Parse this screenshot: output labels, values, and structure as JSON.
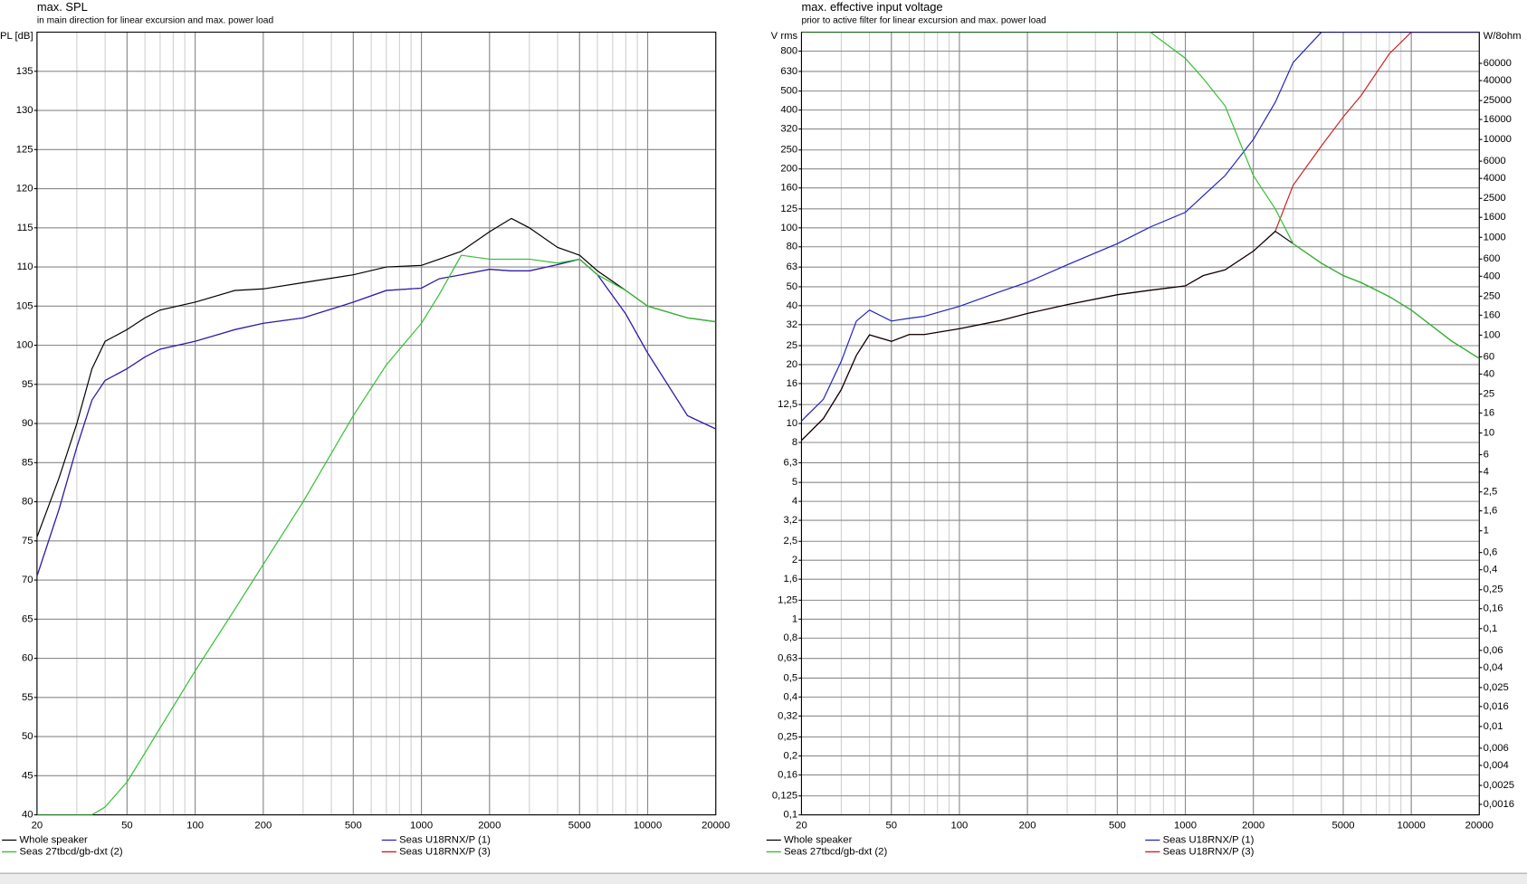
{
  "chart_data": [
    {
      "type": "line",
      "title": "max. SPL",
      "subtitle": "in main direction for linear excursion and max. power load",
      "ylabel": "SPL [dB]",
      "log_x": true,
      "log_y": false,
      "grid": true,
      "legend": "bottom",
      "x": [
        20,
        25,
        30,
        35,
        40,
        50,
        60,
        70,
        100,
        150,
        200,
        300,
        500,
        700,
        1000,
        1200,
        1500,
        2000,
        2500,
        3000,
        4000,
        5000,
        6000,
        8000,
        10000,
        15000,
        20000
      ],
      "xlim": [
        20,
        20000
      ],
      "xticks": [
        20,
        50,
        100,
        200,
        500,
        1000,
        2000,
        5000,
        10000,
        20000
      ],
      "ylim": [
        40,
        140
      ],
      "yticks": [
        40,
        45,
        50,
        55,
        60,
        65,
        70,
        75,
        80,
        85,
        90,
        95,
        100,
        105,
        110,
        115,
        120,
        125,
        130,
        135
      ],
      "series": [
        {
          "name": "Seas U18RNX/P (3)",
          "color": "#d02020",
          "values": [
            70.5,
            79,
            87,
            93,
            95.5,
            97,
            98.5,
            99.5,
            100.5,
            102,
            102.8,
            103.5,
            105.5,
            107,
            107.3,
            108.5,
            109,
            109.7,
            109.5,
            109.5,
            110.3,
            111,
            109,
            104,
            99,
            91,
            89.3
          ]
        },
        {
          "name": "Whole speaker",
          "color": "#000000",
          "values": [
            75.5,
            83,
            90,
            97,
            100.5,
            102,
            103.5,
            104.5,
            105.5,
            107,
            107.2,
            108,
            109,
            110,
            110.2,
            111,
            112,
            114.5,
            116.2,
            115,
            112.5,
            111.5,
            109.5,
            107,
            105,
            103.5,
            103
          ]
        },
        {
          "name": "Seas U18RNX/P (1)",
          "color": "#2020c0",
          "values": [
            70.5,
            79,
            87,
            93,
            95.5,
            97,
            98.5,
            99.5,
            100.5,
            102,
            102.8,
            103.5,
            105.5,
            107,
            107.3,
            108.5,
            109,
            109.7,
            109.5,
            109.5,
            110.3,
            111,
            109,
            104,
            99,
            91,
            89.3
          ]
        },
        {
          "name": "Seas 27tbcd/gb-dxt (2)",
          "color": "#30c030",
          "values": [
            40,
            40,
            40,
            40,
            41,
            44.2,
            47.9,
            51.1,
            58.4,
            66.3,
            72,
            80,
            91,
            97.5,
            102.8,
            106.5,
            111.5,
            111,
            111,
            111,
            110.5,
            111,
            109,
            107,
            105,
            103.5,
            103
          ]
        }
      ]
    },
    {
      "type": "line",
      "title": "max. effective input voltage",
      "subtitle": "prior to active filter for linear excursion and max. power load",
      "ylabel": "V rms",
      "y2label": "W/8ohm",
      "log_x": true,
      "log_y": true,
      "log_y2": true,
      "grid": true,
      "legend": "bottom",
      "x": [
        20,
        25,
        30,
        35,
        40,
        50,
        60,
        70,
        100,
        150,
        200,
        300,
        500,
        700,
        1000,
        1200,
        1500,
        2000,
        2500,
        3000,
        4000,
        5000,
        6000,
        8000,
        10000,
        15000,
        20000
      ],
      "xlim": [
        20,
        20000
      ],
      "xticks": [
        20,
        50,
        100,
        200,
        500,
        1000,
        2000,
        5000,
        10000,
        20000
      ],
      "ylim": [
        0.1,
        1000
      ],
      "yticks": [
        {
          "value": 0.1,
          "label": "0,1"
        },
        {
          "value": 0.125,
          "label": "0,125"
        },
        {
          "value": 0.16,
          "label": "0,16"
        },
        {
          "value": 0.2,
          "label": "0,2"
        },
        {
          "value": 0.25,
          "label": "0,25"
        },
        {
          "value": 0.32,
          "label": "0,32"
        },
        {
          "value": 0.4,
          "label": "0,4"
        },
        {
          "value": 0.5,
          "label": "0,5"
        },
        {
          "value": 0.63,
          "label": "0,63"
        },
        {
          "value": 0.8,
          "label": "0,8"
        },
        1,
        {
          "value": 1.25,
          "label": "1,25"
        },
        {
          "value": 1.6,
          "label": "1,6"
        },
        2,
        {
          "value": 2.5,
          "label": "2,5"
        },
        {
          "value": 3.2,
          "label": "3,2"
        },
        4,
        5,
        {
          "value": 6.3,
          "label": "6,3"
        },
        8,
        10,
        {
          "value": 12.5,
          "label": "12,5"
        },
        16,
        20,
        25,
        32,
        40,
        50,
        63,
        80,
        100,
        125,
        160,
        200,
        250,
        320,
        400,
        500,
        630,
        800
      ],
      "y2lim": [
        0.00125,
        125000
      ],
      "y2ticks": [
        {
          "value": 0.0016,
          "label": "0,0016"
        },
        {
          "value": 0.0025,
          "label": "0,0025"
        },
        {
          "value": 0.004,
          "label": "0,004"
        },
        {
          "value": 0.006,
          "label": "0,006"
        },
        {
          "value": 0.01,
          "label": "0,01"
        },
        {
          "value": 0.016,
          "label": "0,016"
        },
        {
          "value": 0.025,
          "label": "0,025"
        },
        {
          "value": 0.04,
          "label": "0,04"
        },
        {
          "value": 0.06,
          "label": "0,06"
        },
        {
          "value": 0.1,
          "label": "0,1"
        },
        {
          "value": 0.16,
          "label": "0,16"
        },
        {
          "value": 0.25,
          "label": "0,25"
        },
        {
          "value": 0.4,
          "label": "0,4"
        },
        {
          "value": 0.6,
          "label": "0,6"
        },
        1,
        {
          "value": 1.6,
          "label": "1,6"
        },
        {
          "value": 2.5,
          "label": "2,5"
        },
        4,
        6,
        10,
        16,
        25,
        40,
        60,
        100,
        160,
        250,
        400,
        600,
        1000,
        1600,
        2500,
        4000,
        6000,
        10000,
        16000,
        25000,
        40000,
        60000
      ],
      "series": [
        {
          "name": "Seas U18RNX/P (3)",
          "color": "#d02020",
          "values": [
            8.2,
            10.6,
            14.9,
            22.3,
            28.4,
            26.3,
            28.5,
            28.5,
            30.5,
            33.5,
            36.5,
            40.5,
            45.5,
            48,
            50.5,
            57,
            61,
            76,
            96,
            165,
            262,
            369,
            475,
            776,
            1000,
            1000,
            1000
          ]
        },
        {
          "name": "Whole speaker",
          "color": "#000000",
          "values": [
            8.2,
            10.6,
            14.9,
            22.3,
            28.4,
            26.3,
            28.5,
            28.5,
            30.5,
            33.5,
            36.5,
            40.5,
            45.5,
            48,
            50.5,
            57,
            61,
            76,
            96,
            83,
            66,
            57,
            52.5,
            44.5,
            38,
            26.5,
            21.5
          ]
        },
        {
          "name": "Seas U18RNX/P (1)",
          "color": "#2020c0",
          "values": [
            10.3,
            13.3,
            20.8,
            33.4,
            38,
            33.4,
            34.5,
            35.3,
            39.7,
            47,
            52.7,
            64.7,
            83,
            101,
            120,
            146,
            185,
            283,
            438,
            700,
            1000,
            1000,
            1000,
            1000,
            1000,
            1000,
            1000
          ]
        },
        {
          "name": "Seas 27tbcd/gb-dxt (2)",
          "color": "#30c030",
          "values": [
            1000,
            1000,
            1000,
            1000,
            1000,
            1000,
            1000,
            1000,
            1000,
            1000,
            1000,
            1000,
            1000,
            1000,
            735,
            580,
            420,
            185,
            125,
            83,
            66,
            57,
            52.5,
            44.5,
            38,
            26.5,
            21.5
          ]
        }
      ]
    }
  ]
}
